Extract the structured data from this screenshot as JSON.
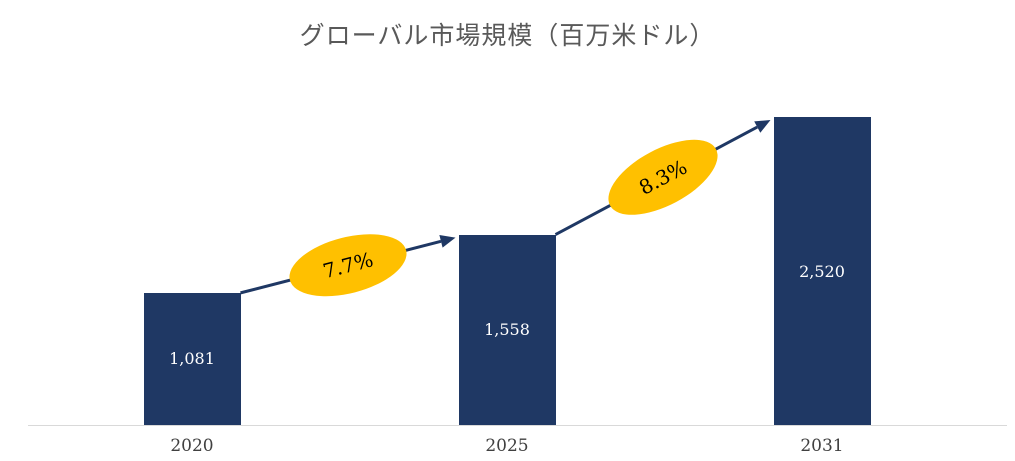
{
  "chart_data": {
    "type": "bar",
    "title": "グローバル市場規模（百万米ドル）",
    "categories": [
      "2020",
      "2025",
      "2031"
    ],
    "values": [
      1081,
      1558,
      2520
    ],
    "value_labels": [
      "1,081",
      "1,558",
      "2,520"
    ],
    "growth": [
      {
        "from": "2020",
        "to": "2025",
        "label": "7.7%"
      },
      {
        "from": "2025",
        "to": "2031",
        "label": "8.3%"
      }
    ],
    "ylim": [
      0,
      2520
    ],
    "xlabel": "",
    "ylabel": "",
    "grid": "off",
    "legend": "none",
    "colors": {
      "bar": "#1f3864",
      "arrow": "#1f3864",
      "growth_bubble": "#ffc000",
      "growth_text": "#000000",
      "title": "#595959",
      "value_label": "#ffffff",
      "axis_label": "#404040",
      "axis_line": "#d9d9d9"
    }
  }
}
